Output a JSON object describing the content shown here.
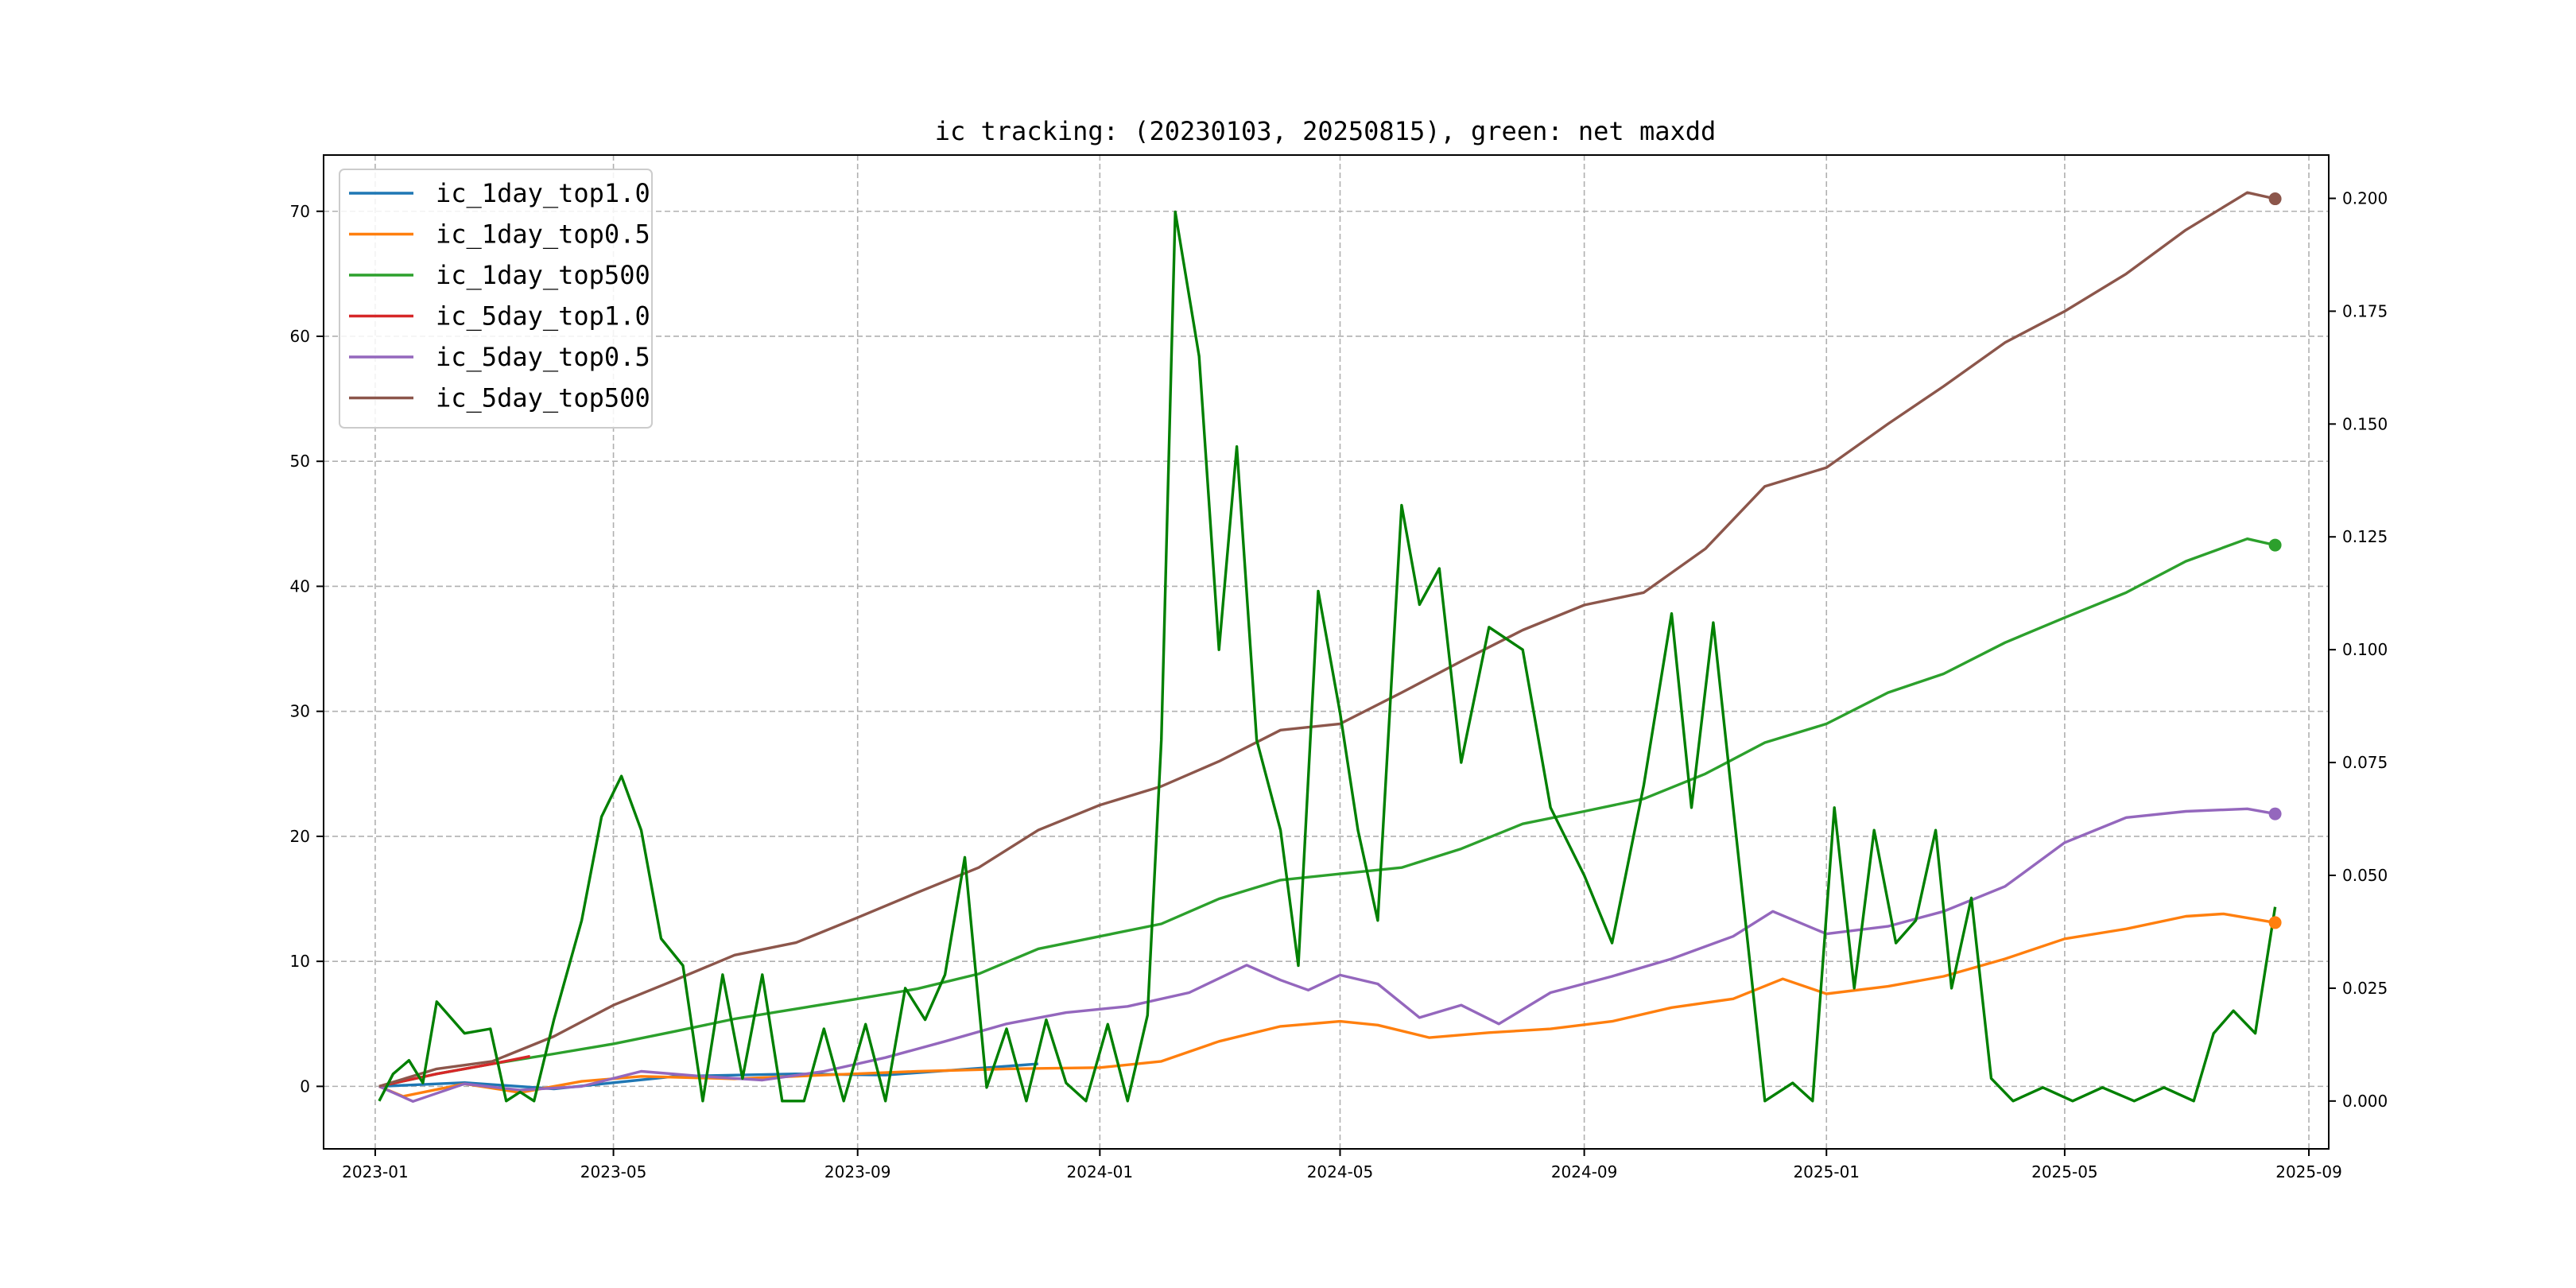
{
  "chart_data": {
    "type": "line",
    "title": "ic tracking: (20230103, 20250815), green: net maxdd",
    "xlabel": "",
    "ylabel": "",
    "x_start": "2023-01-03",
    "x_end": "2025-08-15",
    "xlim": [
      "2022-12-06",
      "2025-09-11"
    ],
    "x_ticks": [
      "2023-01",
      "2023-05",
      "2023-09",
      "2024-01",
      "2024-05",
      "2024-09",
      "2025-01",
      "2025-05",
      "2025-09"
    ],
    "y_left": {
      "lim": [
        -5,
        74.5
      ],
      "ticks": [
        0,
        10,
        20,
        30,
        40,
        50,
        60,
        70
      ]
    },
    "y_right": {
      "lim": [
        -0.0106,
        0.2096
      ],
      "ticks": [
        0.0,
        0.025,
        0.05,
        0.075,
        0.1,
        0.125,
        0.15,
        0.175,
        0.2
      ],
      "tick_labels": [
        "0.000",
        "0.025",
        "0.050",
        "0.075",
        "0.100",
        "0.125",
        "0.150",
        "0.175",
        "0.200"
      ]
    },
    "grid": true,
    "legend_position": "top-left",
    "series": [
      {
        "name": "ic_1day_top1.0",
        "color": "#1f77b4",
        "axis": "left",
        "end_marker": false,
        "points": [
          [
            "2023-01-03",
            0
          ],
          [
            "2023-02-15",
            0.3
          ],
          [
            "2023-04-01",
            -0.2
          ],
          [
            "2023-06-01",
            0.8
          ],
          [
            "2023-08-01",
            1.0
          ],
          [
            "2023-09-15",
            0.9
          ],
          [
            "2023-12-01",
            1.8
          ]
        ]
      },
      {
        "name": "ic_1day_top0.5",
        "color": "#ff7f0e",
        "axis": "left",
        "end_marker": true,
        "points": [
          [
            "2023-01-03",
            0
          ],
          [
            "2023-01-15",
            -0.8
          ],
          [
            "2023-02-15",
            0.2
          ],
          [
            "2023-03-15",
            -0.5
          ],
          [
            "2023-04-15",
            0.4
          ],
          [
            "2023-05-15",
            0.8
          ],
          [
            "2023-07-01",
            0.6
          ],
          [
            "2023-08-15",
            0.9
          ],
          [
            "2023-10-01",
            1.2
          ],
          [
            "2023-11-15",
            1.4
          ],
          [
            "2024-01-01",
            1.5
          ],
          [
            "2024-02-01",
            2.0
          ],
          [
            "2024-03-01",
            3.6
          ],
          [
            "2024-04-01",
            4.8
          ],
          [
            "2024-05-01",
            5.2
          ],
          [
            "2024-05-20",
            4.9
          ],
          [
            "2024-06-15",
            3.9
          ],
          [
            "2024-07-15",
            4.3
          ],
          [
            "2024-08-15",
            4.6
          ],
          [
            "2024-09-15",
            5.2
          ],
          [
            "2024-10-15",
            6.3
          ],
          [
            "2024-11-15",
            7.0
          ],
          [
            "2024-12-10",
            8.6
          ],
          [
            "2025-01-01",
            7.4
          ],
          [
            "2025-02-01",
            8.0
          ],
          [
            "2025-03-01",
            8.8
          ],
          [
            "2025-04-01",
            10.2
          ],
          [
            "2025-05-01",
            11.8
          ],
          [
            "2025-06-01",
            12.6
          ],
          [
            "2025-07-01",
            13.6
          ],
          [
            "2025-07-20",
            13.8
          ],
          [
            "2025-08-15",
            13.1
          ]
        ]
      },
      {
        "name": "ic_1day_top500",
        "color": "#2ca02c",
        "axis": "left",
        "end_marker": true,
        "points": [
          [
            "2023-01-03",
            0
          ],
          [
            "2023-02-01",
            1.0
          ],
          [
            "2023-03-01",
            1.8
          ],
          [
            "2023-04-01",
            2.6
          ],
          [
            "2023-05-01",
            3.4
          ],
          [
            "2023-06-01",
            4.4
          ],
          [
            "2023-07-01",
            5.4
          ],
          [
            "2023-08-01",
            6.2
          ],
          [
            "2023-09-01",
            7.0
          ],
          [
            "2023-10-01",
            7.8
          ],
          [
            "2023-11-01",
            9.0
          ],
          [
            "2023-12-01",
            11.0
          ],
          [
            "2024-01-01",
            12.0
          ],
          [
            "2024-02-01",
            13.0
          ],
          [
            "2024-03-01",
            15.0
          ],
          [
            "2024-04-01",
            16.5
          ],
          [
            "2024-05-01",
            17.0
          ],
          [
            "2024-06-01",
            17.5
          ],
          [
            "2024-07-01",
            19.0
          ],
          [
            "2024-08-01",
            21.0
          ],
          [
            "2024-09-01",
            22.0
          ],
          [
            "2024-10-01",
            23.0
          ],
          [
            "2024-11-01",
            25.0
          ],
          [
            "2024-12-01",
            27.5
          ],
          [
            "2025-01-01",
            29.0
          ],
          [
            "2025-02-01",
            31.5
          ],
          [
            "2025-03-01",
            33.0
          ],
          [
            "2025-04-01",
            35.5
          ],
          [
            "2025-05-01",
            37.5
          ],
          [
            "2025-06-01",
            39.5
          ],
          [
            "2025-07-01",
            42.0
          ],
          [
            "2025-08-01",
            43.8
          ],
          [
            "2025-08-15",
            43.3
          ]
        ]
      },
      {
        "name": "ic_5day_top1.0",
        "color": "#d62728",
        "axis": "left",
        "end_marker": false,
        "points": [
          [
            "2023-01-03",
            0
          ],
          [
            "2023-02-01",
            1.0
          ],
          [
            "2023-03-01",
            1.8
          ],
          [
            "2023-03-20",
            2.4
          ]
        ]
      },
      {
        "name": "ic_5day_top0.5",
        "color": "#9467bd",
        "axis": "left",
        "end_marker": true,
        "points": [
          [
            "2023-01-03",
            0
          ],
          [
            "2023-01-20",
            -1.2
          ],
          [
            "2023-02-15",
            0.2
          ],
          [
            "2023-03-15",
            -0.3
          ],
          [
            "2023-04-15",
            0.0
          ],
          [
            "2023-05-15",
            1.2
          ],
          [
            "2023-06-15",
            0.8
          ],
          [
            "2023-07-15",
            0.5
          ],
          [
            "2023-08-15",
            1.2
          ],
          [
            "2023-09-15",
            2.3
          ],
          [
            "2023-10-15",
            3.6
          ],
          [
            "2023-11-15",
            5.0
          ],
          [
            "2023-12-15",
            5.9
          ],
          [
            "2024-01-15",
            6.4
          ],
          [
            "2024-02-15",
            7.5
          ],
          [
            "2024-03-15",
            9.7
          ],
          [
            "2024-04-01",
            8.5
          ],
          [
            "2024-04-15",
            7.7
          ],
          [
            "2024-05-01",
            8.9
          ],
          [
            "2024-05-20",
            8.2
          ],
          [
            "2024-06-10",
            5.5
          ],
          [
            "2024-07-01",
            6.5
          ],
          [
            "2024-07-20",
            5.0
          ],
          [
            "2024-08-15",
            7.5
          ],
          [
            "2024-09-15",
            8.8
          ],
          [
            "2024-10-15",
            10.2
          ],
          [
            "2024-11-15",
            12.0
          ],
          [
            "2024-12-05",
            14.0
          ],
          [
            "2025-01-01",
            12.2
          ],
          [
            "2025-02-01",
            12.8
          ],
          [
            "2025-03-01",
            14.0
          ],
          [
            "2025-04-01",
            16.0
          ],
          [
            "2025-05-01",
            19.5
          ],
          [
            "2025-06-01",
            21.5
          ],
          [
            "2025-07-01",
            22.0
          ],
          [
            "2025-08-01",
            22.2
          ],
          [
            "2025-08-15",
            21.8
          ]
        ]
      },
      {
        "name": "ic_5day_top500",
        "color": "#8c564b",
        "axis": "left",
        "end_marker": true,
        "points": [
          [
            "2023-01-03",
            0
          ],
          [
            "2023-02-01",
            1.4
          ],
          [
            "2023-03-01",
            2.0
          ],
          [
            "2023-04-01",
            4.0
          ],
          [
            "2023-05-01",
            6.5
          ],
          [
            "2023-06-01",
            8.5
          ],
          [
            "2023-07-01",
            10.5
          ],
          [
            "2023-08-01",
            11.5
          ],
          [
            "2023-09-01",
            13.5
          ],
          [
            "2023-10-01",
            15.5
          ],
          [
            "2023-11-01",
            17.5
          ],
          [
            "2023-12-01",
            20.5
          ],
          [
            "2024-01-01",
            22.5
          ],
          [
            "2024-02-01",
            24.0
          ],
          [
            "2024-03-01",
            26.0
          ],
          [
            "2024-04-01",
            28.5
          ],
          [
            "2024-05-01",
            29.0
          ],
          [
            "2024-06-01",
            31.5
          ],
          [
            "2024-07-01",
            34.0
          ],
          [
            "2024-08-01",
            36.5
          ],
          [
            "2024-09-01",
            38.5
          ],
          [
            "2024-10-01",
            39.5
          ],
          [
            "2024-11-01",
            43.0
          ],
          [
            "2024-12-01",
            48.0
          ],
          [
            "2025-01-01",
            49.5
          ],
          [
            "2025-02-01",
            53.0
          ],
          [
            "2025-03-01",
            56.0
          ],
          [
            "2025-04-01",
            59.5
          ],
          [
            "2025-05-01",
            62.0
          ],
          [
            "2025-06-01",
            65.0
          ],
          [
            "2025-07-01",
            68.5
          ],
          [
            "2025-08-01",
            71.5
          ],
          [
            "2025-08-15",
            71.0
          ]
        ]
      },
      {
        "name": "",
        "color": "#008000",
        "axis": "right",
        "end_marker": false,
        "points": [
          [
            "2023-01-03",
            0.0
          ],
          [
            "2023-01-10",
            0.006
          ],
          [
            "2023-01-18",
            0.009
          ],
          [
            "2023-01-25",
            0.004
          ],
          [
            "2023-02-01",
            0.022
          ],
          [
            "2023-02-15",
            0.015
          ],
          [
            "2023-02-28",
            0.016
          ],
          [
            "2023-03-08",
            0.0
          ],
          [
            "2023-03-15",
            0.002
          ],
          [
            "2023-03-22",
            0.0
          ],
          [
            "2023-04-01",
            0.018
          ],
          [
            "2023-04-15",
            0.04
          ],
          [
            "2023-04-25",
            0.063
          ],
          [
            "2023-05-05",
            0.072
          ],
          [
            "2023-05-15",
            0.06
          ],
          [
            "2023-05-25",
            0.036
          ],
          [
            "2023-06-05",
            0.03
          ],
          [
            "2023-06-15",
            0.0
          ],
          [
            "2023-06-25",
            0.028
          ],
          [
            "2023-07-05",
            0.005
          ],
          [
            "2023-07-15",
            0.028
          ],
          [
            "2023-07-25",
            0.0
          ],
          [
            "2023-08-05",
            0.0
          ],
          [
            "2023-08-15",
            0.016
          ],
          [
            "2023-08-25",
            0.0
          ],
          [
            "2023-09-05",
            0.017
          ],
          [
            "2023-09-15",
            0.0
          ],
          [
            "2023-09-25",
            0.025
          ],
          [
            "2023-10-05",
            0.018
          ],
          [
            "2023-10-15",
            0.028
          ],
          [
            "2023-10-25",
            0.054
          ],
          [
            "2023-11-05",
            0.003
          ],
          [
            "2023-11-15",
            0.016
          ],
          [
            "2023-11-25",
            0.0
          ],
          [
            "2023-12-05",
            0.018
          ],
          [
            "2023-12-15",
            0.004
          ],
          [
            "2023-12-25",
            0.0
          ],
          [
            "2024-01-05",
            0.017
          ],
          [
            "2024-01-15",
            0.0
          ],
          [
            "2024-01-25",
            0.019
          ],
          [
            "2024-02-01",
            0.08
          ],
          [
            "2024-02-08",
            0.197
          ],
          [
            "2024-02-20",
            0.165
          ],
          [
            "2024-03-01",
            0.1
          ],
          [
            "2024-03-10",
            0.145
          ],
          [
            "2024-03-20",
            0.08
          ],
          [
            "2024-04-01",
            0.06
          ],
          [
            "2024-04-10",
            0.03
          ],
          [
            "2024-04-20",
            0.113
          ],
          [
            "2024-05-01",
            0.086
          ],
          [
            "2024-05-10",
            0.06
          ],
          [
            "2024-05-20",
            0.04
          ],
          [
            "2024-06-01",
            0.132
          ],
          [
            "2024-06-10",
            0.11
          ],
          [
            "2024-06-20",
            0.118
          ],
          [
            "2024-07-01",
            0.075
          ],
          [
            "2024-07-15",
            0.105
          ],
          [
            "2024-08-01",
            0.1
          ],
          [
            "2024-08-15",
            0.065
          ],
          [
            "2024-09-01",
            0.05
          ],
          [
            "2024-09-15",
            0.035
          ],
          [
            "2024-10-01",
            0.07
          ],
          [
            "2024-10-15",
            0.108
          ],
          [
            "2024-10-25",
            0.065
          ],
          [
            "2024-11-05",
            0.106
          ],
          [
            "2024-11-15",
            0.065
          ],
          [
            "2024-12-01",
            0.0
          ],
          [
            "2024-12-15",
            0.004
          ],
          [
            "2024-12-25",
            0.0
          ],
          [
            "2025-01-05",
            0.065
          ],
          [
            "2025-01-15",
            0.025
          ],
          [
            "2025-01-25",
            0.06
          ],
          [
            "2025-02-05",
            0.035
          ],
          [
            "2025-02-15",
            0.04
          ],
          [
            "2025-02-25",
            0.06
          ],
          [
            "2025-03-05",
            0.025
          ],
          [
            "2025-03-15",
            0.045
          ],
          [
            "2025-03-25",
            0.005
          ],
          [
            "2025-04-05",
            0.0
          ],
          [
            "2025-04-20",
            0.003
          ],
          [
            "2025-05-05",
            0.0
          ],
          [
            "2025-05-20",
            0.003
          ],
          [
            "2025-06-05",
            0.0
          ],
          [
            "2025-06-20",
            0.003
          ],
          [
            "2025-07-05",
            0.0
          ],
          [
            "2025-07-15",
            0.015
          ],
          [
            "2025-07-25",
            0.02
          ],
          [
            "2025-08-05",
            0.015
          ],
          [
            "2025-08-15",
            0.043
          ]
        ]
      }
    ]
  }
}
